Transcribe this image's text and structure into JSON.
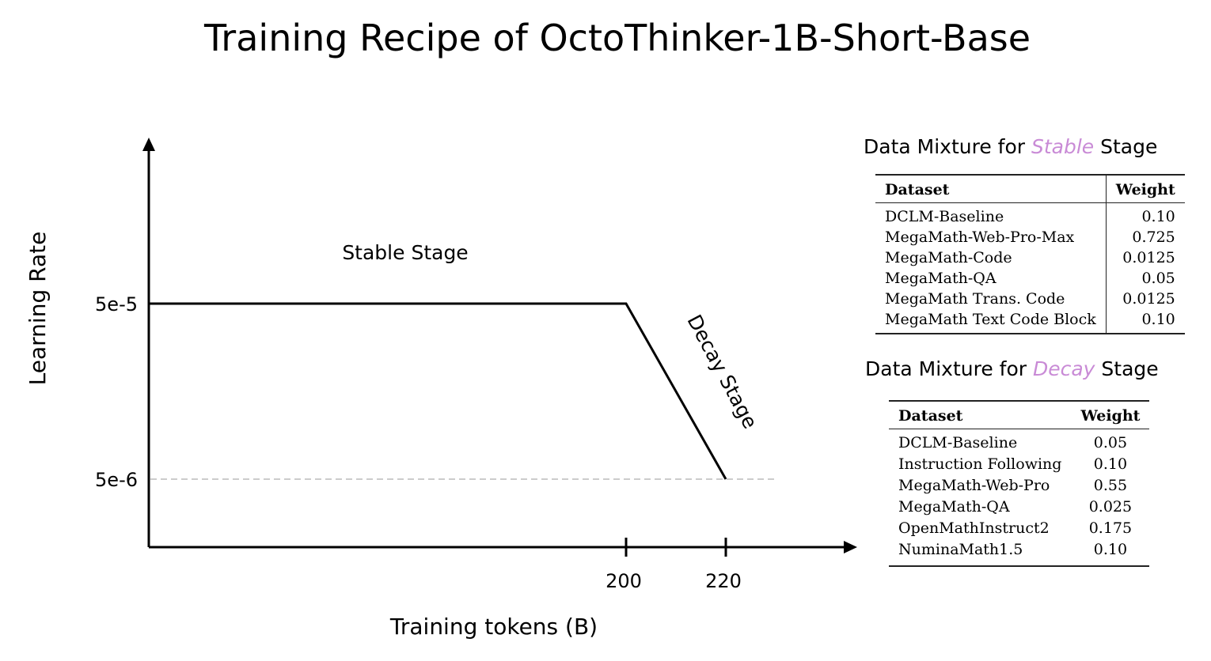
{
  "title": "Training Recipe of OctoThinker-1B-Short-Base",
  "colors": {
    "accent_italic": "#c98bd6",
    "line": "#000000",
    "dashed": "#cccccc"
  },
  "chart_data": {
    "type": "line",
    "title": "Training Recipe of OctoThinker-1B-Short-Base",
    "xlabel": "Training tokens (B)",
    "ylabel": "Learning Rate",
    "x_ticks": [
      {
        "value": 200,
        "label": "200"
      },
      {
        "value": 220,
        "label": "220"
      }
    ],
    "y_ticks": [
      {
        "value": 5e-05,
        "label": "5e-5"
      },
      {
        "value": 5e-06,
        "label": "5e-6"
      }
    ],
    "series": [
      {
        "points": [
          {
            "x": 0,
            "y": 5e-05
          },
          {
            "x": 200,
            "y": 5e-05
          },
          {
            "x": 220,
            "y": 5e-06
          }
        ]
      }
    ],
    "annotations": [
      "Stable Stage",
      "Decay Stage"
    ],
    "grid": false
  },
  "stable_table": {
    "title_pre": "Data Mixture for ",
    "title_em": "Stable",
    "title_post": " Stage",
    "headers": [
      "Dataset",
      "Weight"
    ],
    "rows": [
      [
        "DCLM-Baseline",
        "0.10"
      ],
      [
        "MegaMath-Web-Pro-Max",
        "0.725"
      ],
      [
        "MegaMath-Code",
        "0.0125"
      ],
      [
        "MegaMath-QA",
        "0.05"
      ],
      [
        "MegaMath Trans. Code",
        "0.0125"
      ],
      [
        "MegaMath Text Code Block",
        "0.10"
      ]
    ]
  },
  "decay_table": {
    "title_pre": "Data Mixture for ",
    "title_em": "Decay",
    "title_post": " Stage",
    "headers": [
      "Dataset",
      "Weight"
    ],
    "rows": [
      [
        "DCLM-Baseline",
        "0.05"
      ],
      [
        "Instruction Following",
        "0.10"
      ],
      [
        "MegaMath-Web-Pro",
        "0.55"
      ],
      [
        "MegaMath-QA",
        "0.025"
      ],
      [
        "OpenMathInstruct2",
        "0.175"
      ],
      [
        "NuminaMath1.5",
        "0.10"
      ]
    ]
  }
}
